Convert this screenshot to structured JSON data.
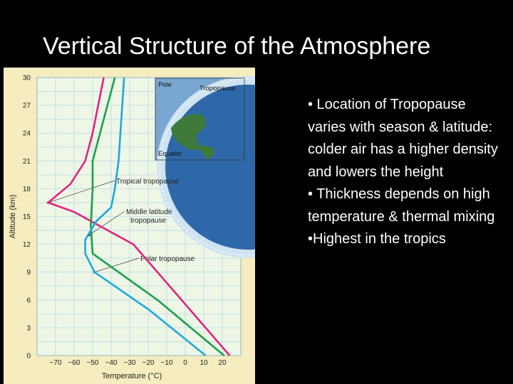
{
  "slide": {
    "title": "Vertical Structure of the Atmosphere",
    "bullets": [
      "• Location of Tropopause varies with season & latitude: colder air has a higher density and lowers the height",
      "• Thickness depends on high temperature & thermal mixing",
      "•Highest in the tropics"
    ]
  },
  "chart_data": {
    "type": "line",
    "xlabel": "Temperature (°C)",
    "ylabel": "Altitude (km)",
    "xlim": [
      -80,
      30
    ],
    "ylim": [
      0,
      30
    ],
    "x_ticks": [
      -70,
      -60,
      -50,
      -40,
      -30,
      -20,
      -10,
      0,
      10,
      20
    ],
    "y_ticks": [
      0,
      3,
      6,
      9,
      12,
      15,
      18,
      21,
      24,
      27,
      30
    ],
    "grid": true,
    "series": [
      {
        "color": "#e0237f",
        "points": [
          [
            24,
            0
          ],
          [
            -2,
            6
          ],
          [
            -28,
            12
          ],
          [
            -60,
            15.5
          ],
          [
            -74,
            16.5
          ],
          [
            -62,
            18.5
          ],
          [
            -54,
            21
          ],
          [
            -50,
            24
          ],
          [
            -47,
            27
          ],
          [
            -44,
            30
          ]
        ]
      },
      {
        "color": "#1aa04a",
        "points": [
          [
            21,
            0
          ],
          [
            -15,
            6
          ],
          [
            -50,
            11
          ],
          [
            -51,
            14
          ],
          [
            -50,
            18
          ],
          [
            -50,
            21
          ],
          [
            -46,
            24
          ],
          [
            -42,
            27
          ],
          [
            -38,
            30
          ]
        ]
      },
      {
        "color": "#1fa7de",
        "points": [
          [
            11,
            0
          ],
          [
            -20,
            5
          ],
          [
            -49,
            9
          ],
          [
            -54,
            11
          ],
          [
            -54,
            12.5
          ],
          [
            -48,
            14.5
          ],
          [
            -40,
            16
          ],
          [
            -38,
            18
          ],
          [
            -36,
            21
          ],
          [
            -35,
            24
          ],
          [
            -34,
            27
          ],
          [
            -33,
            30
          ]
        ]
      }
    ],
    "annotations": [
      {
        "text": "Tropical tropopause",
        "point": [
          -74,
          16.5
        ]
      },
      {
        "text": "Middle latitude tropopause",
        "point": [
          -52,
          13
        ]
      },
      {
        "text": "Polar tropopause",
        "point": [
          -49,
          9
        ]
      }
    ],
    "inset": {
      "labels": [
        "Pole",
        "Tropopause",
        "Equator"
      ],
      "colors": {
        "sky": "#7aa7d1",
        "ocean": "#2f68a8",
        "land": "#3f7a3a"
      }
    }
  }
}
